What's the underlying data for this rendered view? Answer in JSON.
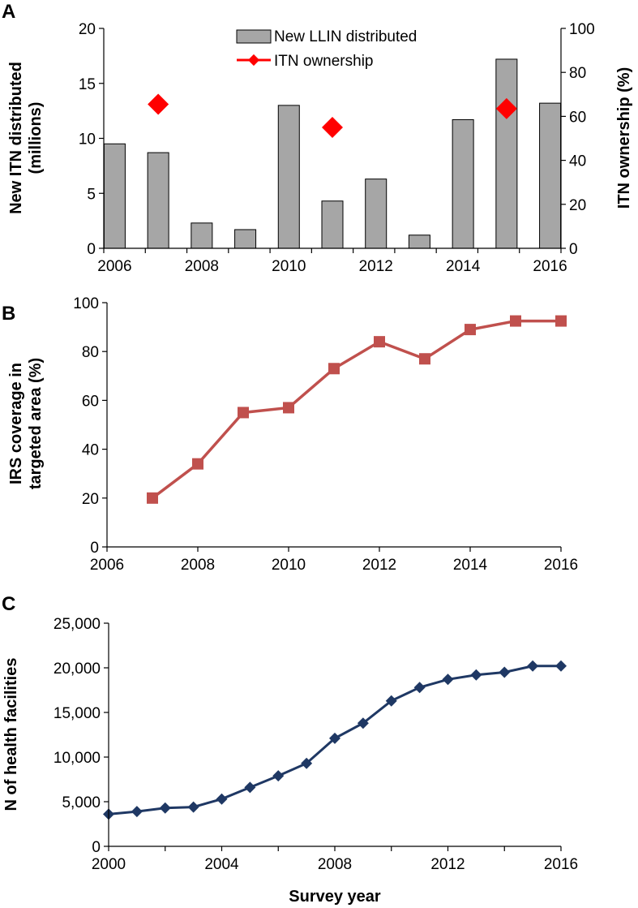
{
  "colors": {
    "bar_fill": "#a6a6a6",
    "bar_stroke": "#000000",
    "itn_marker": "#ff0000",
    "irs_line": "#c0504d",
    "hf_line": "#1f3864"
  },
  "chart_data": [
    {
      "panel": "A",
      "type": "bar",
      "categories": [
        "2006",
        "2007",
        "2008",
        "2009",
        "2010",
        "2011",
        "2012",
        "2013",
        "2014",
        "2015",
        "2016"
      ],
      "x": [
        2006,
        2007,
        2008,
        2009,
        2010,
        2011,
        2012,
        2013,
        2014,
        2015,
        2016
      ],
      "xticks": [
        "2006",
        "2008",
        "2010",
        "2012",
        "2014",
        "2016"
      ],
      "xtick_values": [
        2006,
        2008,
        2010,
        2012,
        2014,
        2016
      ],
      "xlim": [
        2005.75,
        2016.25
      ],
      "series": [
        {
          "name": "New LLIN distributed",
          "axis": "left",
          "kind": "bar",
          "values": [
            9.5,
            8.7,
            2.3,
            1.7,
            13.0,
            4.3,
            6.3,
            1.2,
            11.7,
            17.2,
            13.2
          ]
        },
        {
          "name": "ITN ownership",
          "axis": "right",
          "kind": "marker",
          "x": [
            2007,
            2011,
            2015
          ],
          "values": [
            65.5,
            55.0,
            63.5
          ]
        }
      ],
      "ylabel": "New ITN distributed (millions)",
      "ylabel_lines": [
        "New ITN distributed",
        "(millions)"
      ],
      "ylim": [
        0,
        20
      ],
      "yticks": [
        "0",
        "5",
        "10",
        "15",
        "20"
      ],
      "ytick_values": [
        0,
        5,
        10,
        15,
        20
      ],
      "y2label": "ITN ownership (%)",
      "y2lim": [
        0,
        100
      ],
      "y2ticks": [
        "0",
        "20",
        "40",
        "60",
        "80",
        "100"
      ],
      "y2tick_values": [
        0,
        20,
        40,
        60,
        80,
        100
      ],
      "legend": {
        "placement": "top-center",
        "entries": [
          "New LLIN distributed",
          "ITN ownership"
        ]
      },
      "grid": false
    },
    {
      "panel": "B",
      "type": "line",
      "x": [
        2007,
        2008,
        2009,
        2010,
        2011,
        2012,
        2013,
        2014,
        2015,
        2016
      ],
      "series": [
        {
          "name": "IRS coverage in targeted area (%)",
          "values": [
            20,
            34,
            55,
            57,
            73,
            84,
            77,
            89,
            92.5,
            92.5
          ]
        }
      ],
      "ylabel": "IRS coverage in targeted area (%)",
      "ylabel_lines": [
        "IRS coverage in",
        "targeted area (%)"
      ],
      "xlim": [
        2006,
        2016
      ],
      "ylim": [
        0,
        100
      ],
      "xticks": [
        "2006",
        "2008",
        "2010",
        "2012",
        "2014",
        "2016"
      ],
      "xtick_values": [
        2006,
        2008,
        2010,
        2012,
        2014,
        2016
      ],
      "yticks": [
        "0",
        "20",
        "40",
        "60",
        "80",
        "100"
      ],
      "ytick_values": [
        0,
        20,
        40,
        60,
        80,
        100
      ],
      "grid": false
    },
    {
      "panel": "C",
      "type": "line",
      "x": [
        2000,
        2001,
        2002,
        2003,
        2004,
        2005,
        2006,
        2007,
        2008,
        2009,
        2010,
        2011,
        2012,
        2013,
        2014,
        2015,
        2016
      ],
      "series": [
        {
          "name": "N of health facilities",
          "values": [
            3600,
            3900,
            4300,
            4400,
            5300,
            6600,
            7900,
            9300,
            12100,
            13800,
            16300,
            17800,
            18700,
            19200,
            19500,
            20200,
            20200
          ]
        }
      ],
      "xlabel": "Survey year",
      "ylabel": "N of health facilities",
      "xlim": [
        2000,
        2016
      ],
      "ylim": [
        0,
        25000
      ],
      "xticks": [
        "2000",
        "2004",
        "2008",
        "2012",
        "2016"
      ],
      "xtick_values": [
        2000,
        2004,
        2008,
        2012,
        2016
      ],
      "yticks": [
        "0",
        "5,000",
        "10,000",
        "15,000",
        "20,000",
        "25,000"
      ],
      "ytick_values": [
        0,
        5000,
        10000,
        15000,
        20000,
        25000
      ],
      "grid": false
    }
  ]
}
